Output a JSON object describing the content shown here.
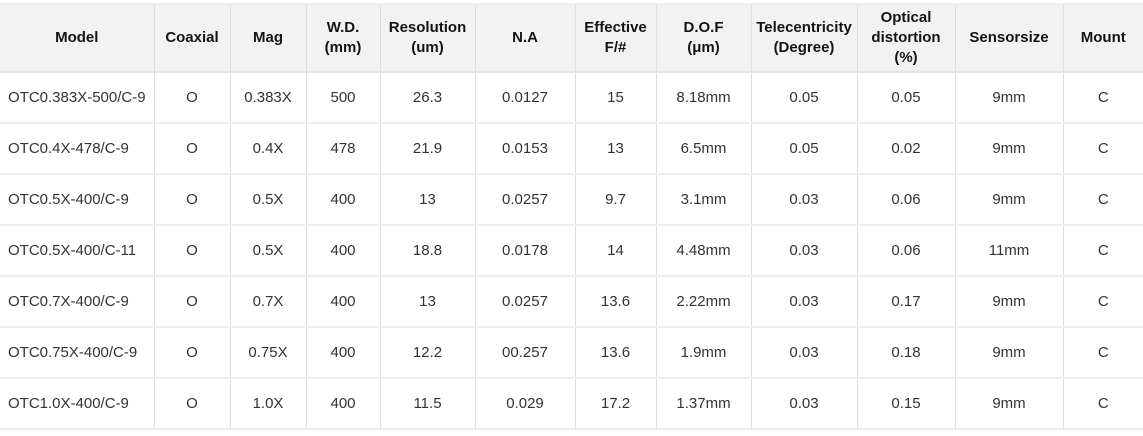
{
  "chart_data": {
    "type": "table",
    "title": "",
    "columns": [
      {
        "key": "model",
        "lines": [
          "Model"
        ]
      },
      {
        "key": "coaxial",
        "lines": [
          "Coaxial"
        ]
      },
      {
        "key": "mag",
        "lines": [
          "Mag"
        ]
      },
      {
        "key": "wd",
        "lines": [
          "W.D.",
          "(mm)"
        ]
      },
      {
        "key": "resolution",
        "lines": [
          "Resolution",
          "(um)"
        ]
      },
      {
        "key": "na",
        "lines": [
          "N.A"
        ]
      },
      {
        "key": "effective-f",
        "lines": [
          "Effective",
          "F/#"
        ]
      },
      {
        "key": "dof",
        "lines": [
          "D.O.F",
          "(μm)"
        ]
      },
      {
        "key": "telecentricity",
        "lines": [
          "Telecentricity",
          "(Degree)"
        ]
      },
      {
        "key": "optical-distortion",
        "lines": [
          "Optical",
          "distortion",
          "(%)"
        ]
      },
      {
        "key": "sensorsize",
        "lines": [
          "Sensorsize"
        ]
      },
      {
        "key": "mount",
        "lines": [
          "Mount"
        ]
      }
    ],
    "rows": [
      [
        "OTC0.383X-500/C-9",
        "O",
        "0.383X",
        "500",
        "26.3",
        "0.0127",
        "15",
        "8.18mm",
        "0.05",
        "0.05",
        "9mm",
        "C"
      ],
      [
        "OTC0.4X-478/C-9",
        "O",
        "0.4X",
        "478",
        "21.9",
        "0.0153",
        "13",
        "6.5mm",
        "0.05",
        "0.02",
        "9mm",
        "C"
      ],
      [
        "OTC0.5X-400/C-9",
        "O",
        "0.5X",
        "400",
        "13",
        "0.0257",
        "9.7",
        "3.1mm",
        "0.03",
        "0.06",
        "9mm",
        "C"
      ],
      [
        "OTC0.5X-400/C-11",
        "O",
        "0.5X",
        "400",
        "18.8",
        "0.0178",
        "14",
        "4.48mm",
        "0.03",
        "0.06",
        "11mm",
        "C"
      ],
      [
        "OTC0.7X-400/C-9",
        "O",
        "0.7X",
        "400",
        "13",
        "0.0257",
        "13.6",
        "2.22mm",
        "0.03",
        "0.17",
        "9mm",
        "C"
      ],
      [
        "OTC0.75X-400/C-9",
        "O",
        "0.75X",
        "400",
        "12.2",
        "00.257",
        "13.6",
        "1.9mm",
        "0.03",
        "0.18",
        "9mm",
        "C"
      ],
      [
        "OTC1.0X-400/C-9",
        "O",
        "1.0X",
        "400",
        "11.5",
        "0.029",
        "17.2",
        "1.37mm",
        "0.03",
        "0.15",
        "9mm",
        "C"
      ]
    ]
  },
  "colors": {
    "header_bg": "#f2f2f2",
    "vertical_border": "#dedede",
    "horizontal_border": "#ededed",
    "header_text": "#141414",
    "body_text": "#333333",
    "body_bg": "#ffffff"
  }
}
